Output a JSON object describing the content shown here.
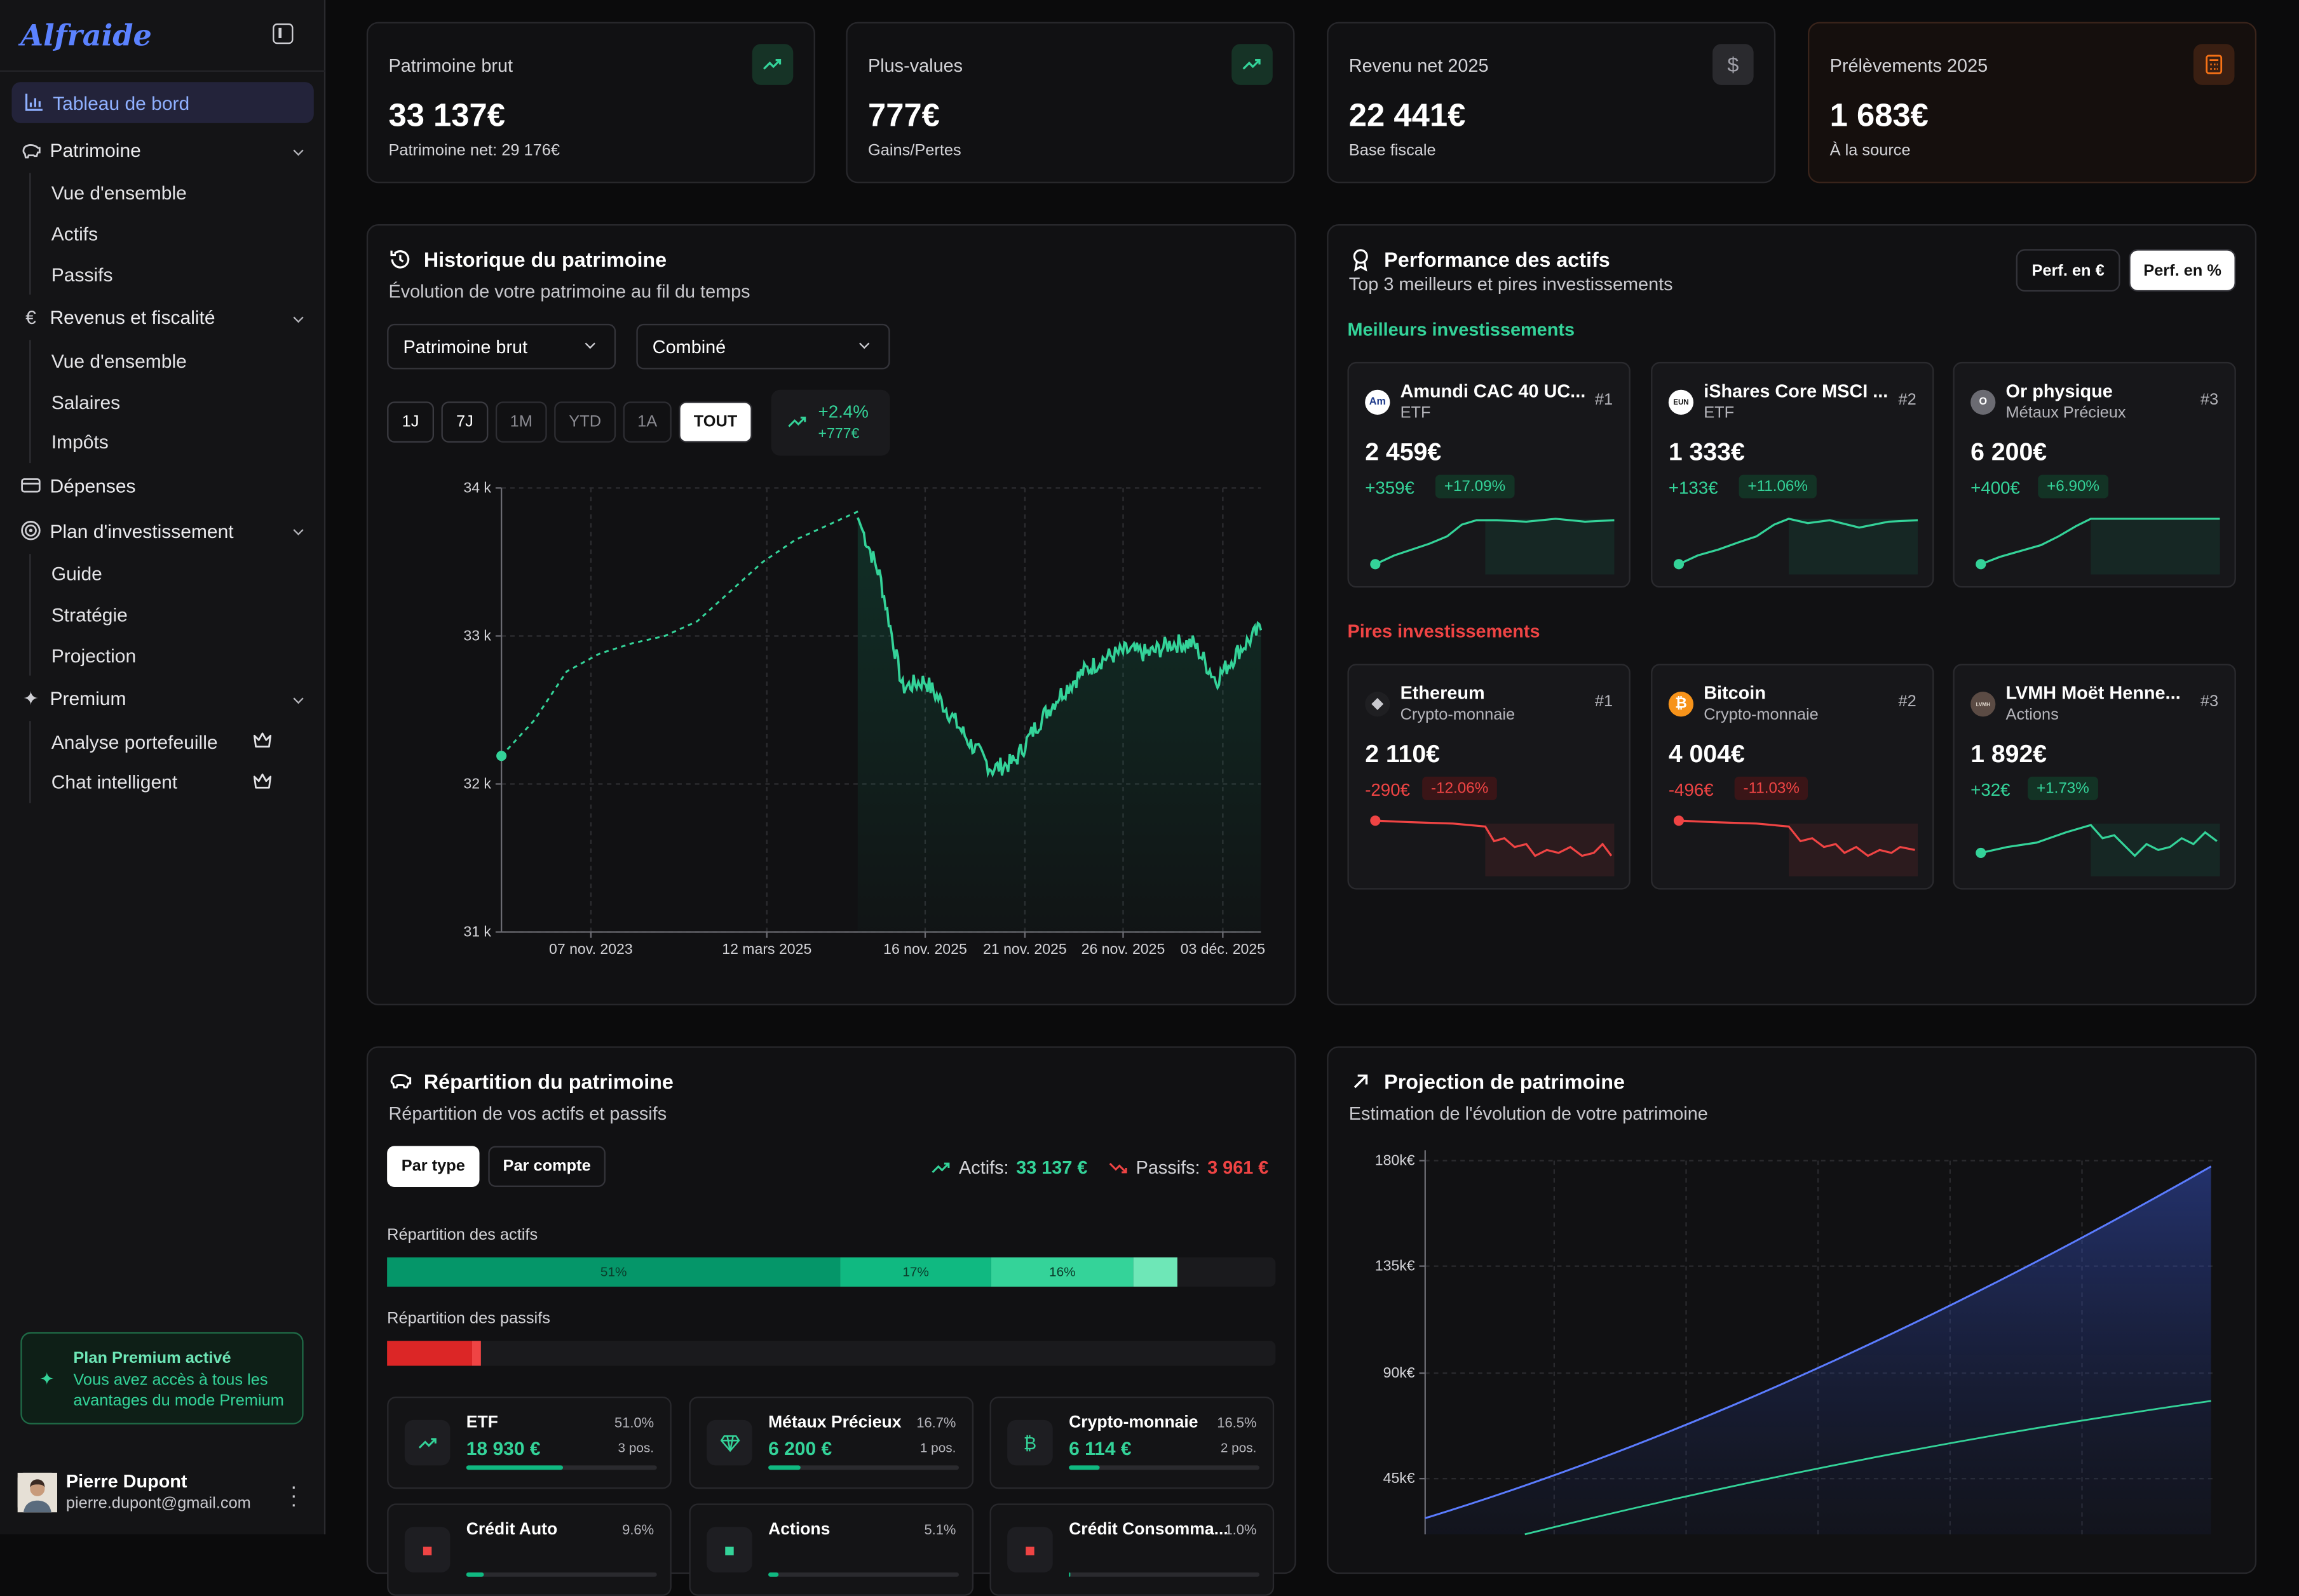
{
  "app": {
    "logo": "Alfraide"
  },
  "sidebar": {
    "items": [
      {
        "label": "Tableau de bord",
        "icon": "bar-chart-icon",
        "active": true
      },
      {
        "label": "Patrimoine",
        "icon": "piggy-bank-icon",
        "expandable": true,
        "children": [
          "Vue d'ensemble",
          "Actifs",
          "Passifs"
        ]
      },
      {
        "label": "Revenus et fiscalité",
        "icon": "euro-icon",
        "expandable": true,
        "children": [
          "Vue d'ensemble",
          "Salaires",
          "Impôts"
        ]
      },
      {
        "label": "Dépenses",
        "icon": "credit-card-icon"
      },
      {
        "label": "Plan d'investissement",
        "icon": "target-icon",
        "expandable": true,
        "children": [
          "Guide",
          "Stratégie",
          "Projection"
        ]
      },
      {
        "label": "Premium",
        "icon": "sparkles-icon",
        "expandable": true,
        "children": [
          "Analyse portefeuille",
          "Chat intelligent"
        ]
      }
    ],
    "premium_card": {
      "title": "Plan Premium activé",
      "text": "Vous avez accès à tous les avantages du mode Premium"
    },
    "user": {
      "name": "Pierre Dupont",
      "email": "pierre.dupont@gmail.com"
    }
  },
  "kpis": [
    {
      "label": "Patrimoine brut",
      "value": "33 137€",
      "sub": "Patrimoine net: 29 176€",
      "icon": "trending-up-icon",
      "accent": "#34d399"
    },
    {
      "label": "Plus-values",
      "value": "777€",
      "sub": "Gains/Pertes",
      "icon": "trending-up-icon",
      "accent": "#34d399"
    },
    {
      "label": "Revenu net 2025",
      "value": "22 441€",
      "sub": "Base fiscale",
      "icon": "dollar-icon",
      "accent": "#a1a1aa"
    },
    {
      "label": "Prélèvements 2025",
      "value": "1 683€",
      "sub": "À la source",
      "icon": "calculator-icon",
      "accent": "#f97316"
    }
  ],
  "history": {
    "title": "Historique du patrimoine",
    "subtitle": "Évolution de votre patrimoine au fil du temps",
    "select_metric": "Patrimoine brut",
    "select_mode": "Combiné",
    "ranges": [
      "1J",
      "7J",
      "1M",
      "YTD",
      "1A",
      "TOUT"
    ],
    "selected_range": "TOUT",
    "change_pct": "+2.4%",
    "change_abs": "+777€"
  },
  "chart_data": {
    "type": "line",
    "x_tick_labels": [
      "07 nov. 2023",
      "12 mars 2025",
      "16 nov. 2025",
      "21 nov. 2025",
      "26 nov. 2025",
      "03 déc. 2025"
    ],
    "y_tick_labels": [
      "34 k",
      "33 k",
      "32 k",
      "31 k"
    ],
    "ylim": [
      31000,
      34000
    ],
    "series": [
      {
        "values_start": [
          32190,
          32430,
          32760,
          32880,
          32950,
          33000,
          33100,
          33300,
          33500,
          33650,
          33750,
          33850
        ]
      },
      {
        "values_end": [
          33800,
          33400,
          32650,
          32700,
          32500,
          32280,
          32100,
          32150,
          32400,
          32600,
          32750,
          32850,
          32900,
          32880,
          32950,
          32950,
          32700,
          32900,
          33050
        ]
      }
    ],
    "line_color": "#34d399",
    "grid": true
  },
  "performance": {
    "title": "Performance des actifs",
    "subtitle": "Top 3 meilleurs et pires investissements",
    "toggle_eur": "Perf. en €",
    "toggle_pct": "Perf. en %",
    "best_label": "Meilleurs investissements",
    "worst_label": "Pires investissements",
    "best": [
      {
        "name": "Amundi CAC 40 UC...",
        "category": "ETF",
        "rank": "#1",
        "value": "2 459€",
        "delta": "+359€",
        "pct": "+17.09%",
        "logo": "Am"
      },
      {
        "name": "iShares Core MSCI ...",
        "category": "ETF",
        "rank": "#2",
        "value": "1 333€",
        "delta": "+133€",
        "pct": "+11.06%",
        "logo": "EUN"
      },
      {
        "name": "Or physique",
        "category": "Métaux Précieux",
        "rank": "#3",
        "value": "6 200€",
        "delta": "+400€",
        "pct": "+6.90%",
        "logo": "O"
      }
    ],
    "worst": [
      {
        "name": "Ethereum",
        "category": "Crypto-monnaie",
        "rank": "#1",
        "value": "2 110€",
        "delta": "-290€",
        "pct": "-12.06%",
        "logo": "◆"
      },
      {
        "name": "Bitcoin",
        "category": "Crypto-monnaie",
        "rank": "#2",
        "value": "4 004€",
        "delta": "-496€",
        "pct": "-11.03%",
        "logo": "₿"
      },
      {
        "name": "LVMH Moët Henne...",
        "category": "Actions",
        "rank": "#3",
        "value": "1 892€",
        "delta": "+32€",
        "pct": "+1.73%",
        "logo": "LVMH"
      }
    ]
  },
  "repartition": {
    "title": "Répartition du patrimoine",
    "subtitle": "Répartition de vos actifs et passifs",
    "tab_type": "Par type",
    "tab_account": "Par compte",
    "assets_label": "Actifs:",
    "assets_value": "33 137 €",
    "liabilities_label": "Passifs:",
    "liabilities_value": "3 961 €",
    "assets_bar_label": "Répartition des actifs",
    "liabilities_bar_label": "Répartition des passifs",
    "asset_segments": [
      {
        "pct": 51,
        "label": "51%",
        "color": "#059669"
      },
      {
        "pct": 17,
        "label": "17%",
        "color": "#10b981"
      },
      {
        "pct": 16,
        "label": "16%",
        "color": "#34d399"
      },
      {
        "pct": 5,
        "label": "",
        "color": "#6ee7b7"
      }
    ],
    "liability_segments": [
      {
        "pct": 9.6,
        "color": "#dc2626"
      },
      {
        "pct": 1,
        "color": "#ef4444"
      }
    ],
    "cards": [
      {
        "name": "ETF",
        "value": "18 930 €",
        "pct": "51.0%",
        "positions": "3 pos.",
        "fill": 0.51,
        "icon": "trending-up-icon"
      },
      {
        "name": "Métaux Précieux",
        "value": "6 200 €",
        "pct": "16.7%",
        "positions": "1 pos.",
        "fill": 0.167,
        "icon": "gem-icon"
      },
      {
        "name": "Crypto-monnaie",
        "value": "6 114 €",
        "pct": "16.5%",
        "positions": "2 pos.",
        "fill": 0.165,
        "icon": "bitcoin-icon"
      },
      {
        "name": "Crédit Auto",
        "value": "",
        "pct": "9.6%",
        "positions": "",
        "fill": 0.096,
        "icon": "car-icon"
      },
      {
        "name": "Actions",
        "value": "",
        "pct": "5.1%",
        "positions": "",
        "fill": 0.051,
        "icon": "chart-icon"
      },
      {
        "name": "Crédit Consomma...",
        "value": "",
        "pct": "1.0%",
        "positions": "",
        "fill": 0.01,
        "icon": "card-icon"
      }
    ]
  },
  "projection": {
    "title": "Projection de patrimoine",
    "subtitle": "Estimation de l'évolution de votre patrimoine",
    "y_tick_labels": [
      "180k€",
      "135k€",
      "90k€",
      "45k€"
    ]
  }
}
